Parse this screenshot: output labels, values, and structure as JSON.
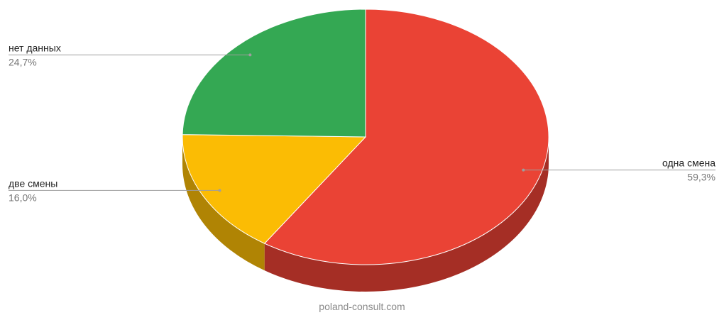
{
  "chart_data": {
    "type": "pie",
    "style": "3d",
    "title": "",
    "slices": [
      {
        "label": "одна смена",
        "value": 59.3,
        "value_label": "59,3%",
        "color": "#ea4335",
        "side_color": "#a52e25"
      },
      {
        "label": "две смены",
        "value": 16.0,
        "value_label": "16,0%",
        "color": "#fbbc04",
        "side_color": "#b08404"
      },
      {
        "label": "нет данных",
        "value": 24.7,
        "value_label": "24,7%",
        "color": "#34a853",
        "side_color": "#24763a"
      }
    ]
  },
  "watermark": "poland-consult.com"
}
